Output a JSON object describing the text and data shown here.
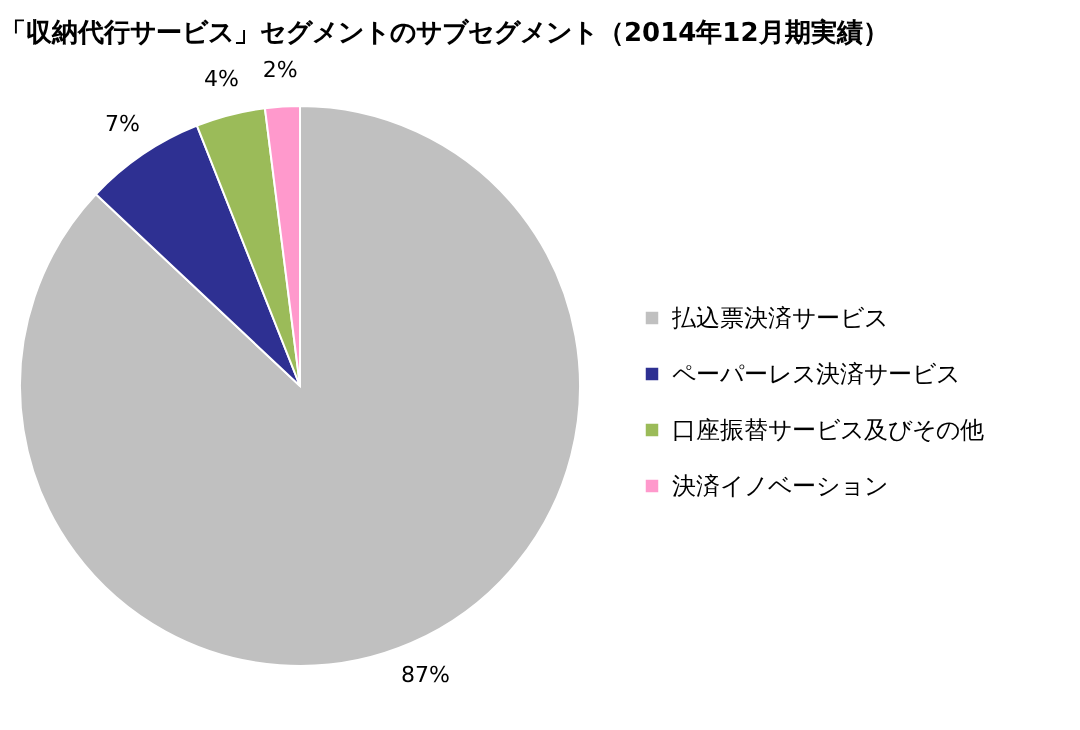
{
  "chart_data": {
    "type": "pie",
    "title": "「収納代行サービス」セグメントのサブセグメント（2014年12月期実績）",
    "categories": [
      "払込票決済サービス",
      "ペーパーレス決済サービス",
      "口座振替サービス及びその他",
      "決済イノベーション"
    ],
    "values": [
      87,
      7,
      4,
      2
    ],
    "colors": [
      "#c0c0c0",
      "#2e3092",
      "#9bbb59",
      "#ff99cc"
    ],
    "value_labels": [
      "87%",
      "7%",
      "4%",
      "2%"
    ],
    "legend": "right"
  }
}
